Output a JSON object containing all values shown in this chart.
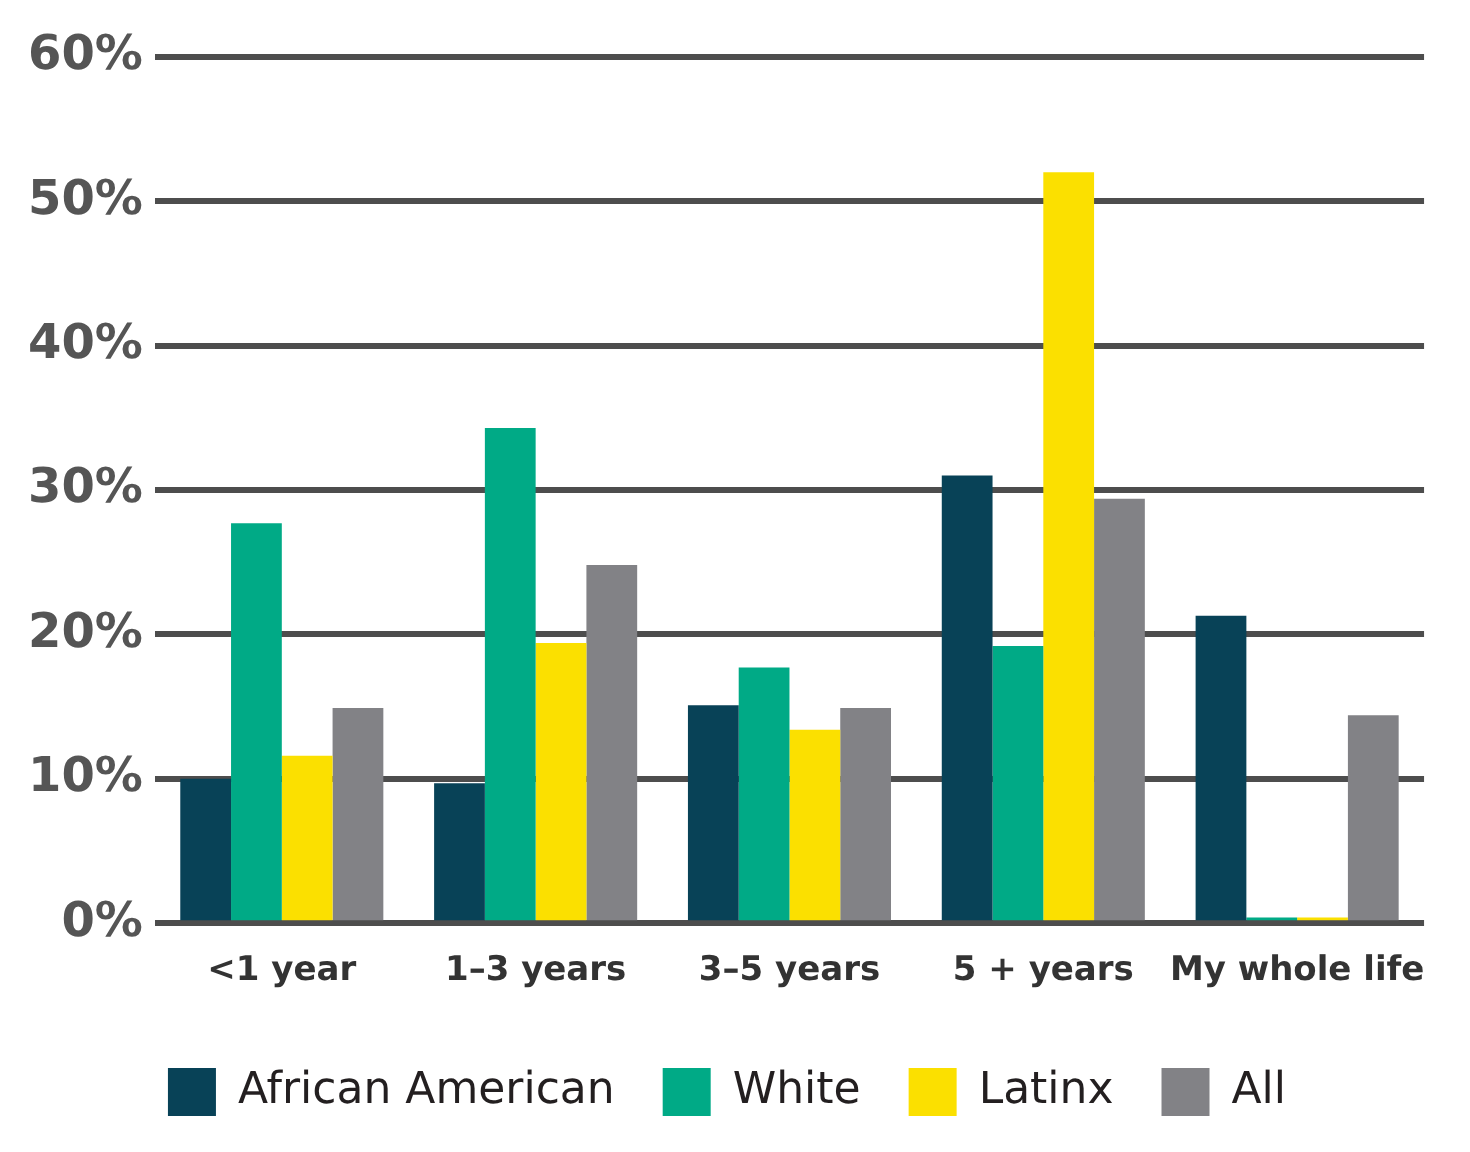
{
  "chart_data": {
    "type": "bar",
    "categories": [
      "<1 year",
      "1–3 years",
      "3–5 years",
      "5 + years",
      "My whole life"
    ],
    "series": [
      {
        "name": "African American",
        "color": "#084257",
        "values": [
          10.0,
          9.7,
          15.1,
          31.0,
          21.3
        ]
      },
      {
        "name": "White",
        "color": "#00aa86",
        "values": [
          27.7,
          34.3,
          17.7,
          19.2,
          0.4
        ]
      },
      {
        "name": "Latinx",
        "color": "#fbe000",
        "values": [
          11.6,
          19.4,
          13.4,
          52.0,
          0.4
        ]
      },
      {
        "name": "All",
        "color": "#828286",
        "values": [
          14.9,
          24.8,
          14.9,
          29.4,
          14.4
        ]
      }
    ],
    "ylim": [
      0,
      60
    ],
    "yticks": [
      {
        "value": 0,
        "label": "0%"
      },
      {
        "value": 10,
        "label": "10%"
      },
      {
        "value": 20,
        "label": "20%"
      },
      {
        "value": 30,
        "label": "30%"
      },
      {
        "value": 40,
        "label": "40%"
      },
      {
        "value": 50,
        "label": "50%"
      },
      {
        "value": 60,
        "label": "60%"
      }
    ],
    "grid": "y",
    "legend": "bottom"
  }
}
